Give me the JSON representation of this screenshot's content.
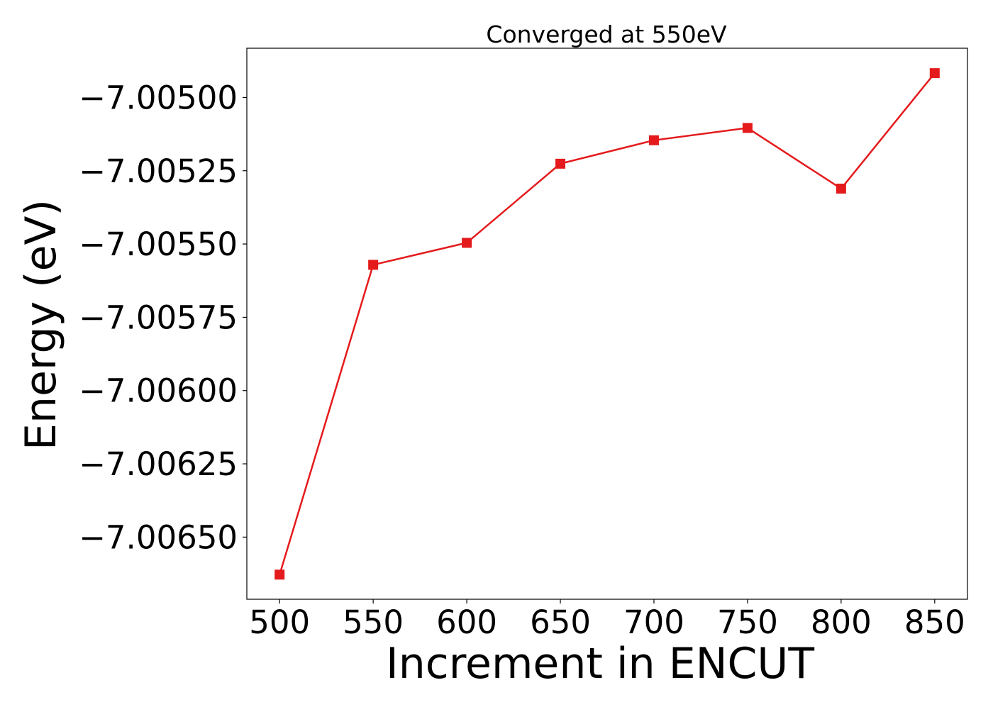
{
  "chart_data": {
    "type": "line",
    "title": "Converged at 550eV",
    "xlabel": "Increment in ENCUT",
    "ylabel": "Energy (eV)",
    "x": [
      500,
      550,
      600,
      650,
      700,
      750,
      800,
      850
    ],
    "series": [
      {
        "values": [
          -7.006628,
          -7.005571,
          -7.005496,
          -7.005226,
          -7.005146,
          -7.005104,
          -7.005311,
          -7.004917
        ],
        "color": "#e41a1c",
        "marker": "square"
      }
    ],
    "xticks": [
      500,
      550,
      600,
      650,
      700,
      750,
      800,
      850
    ],
    "xtick_labels": [
      "500",
      "550",
      "600",
      "650",
      "700",
      "750",
      "800",
      "850"
    ],
    "yticks": [
      -7.005,
      -7.00525,
      -7.0055,
      -7.00575,
      -7.006,
      -7.00625,
      -7.0065
    ],
    "ytick_labels": [
      "−7.00500",
      "−7.00525",
      "−7.00550",
      "−7.00575",
      "−7.00600",
      "−7.00625",
      "−7.00650"
    ],
    "xlim": [
      482.5,
      867.5
    ],
    "ylim": [
      -7.006712,
      -7.004832
    ],
    "grid": false,
    "legend": "none"
  }
}
